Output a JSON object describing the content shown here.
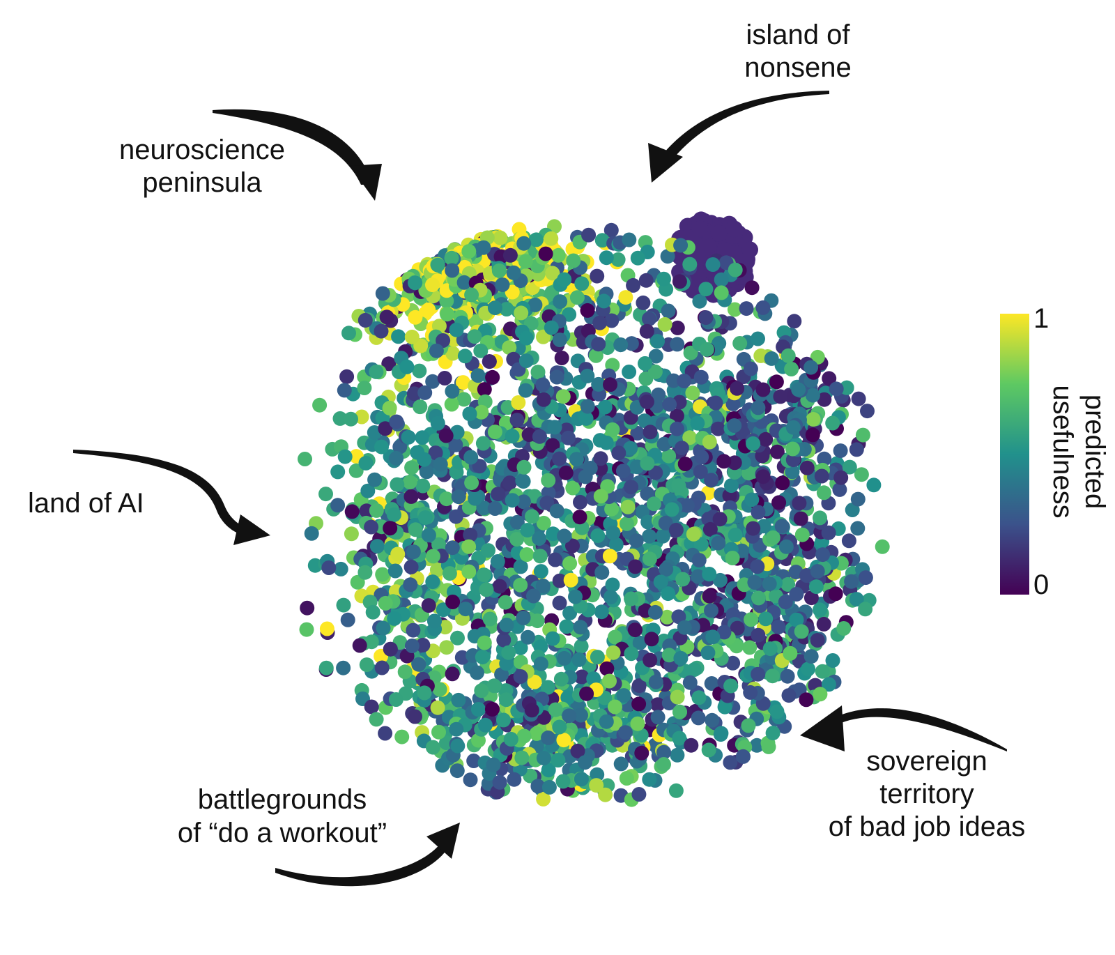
{
  "chart_data": {
    "type": "scatter",
    "title": "",
    "xlabel": "",
    "ylabel": "",
    "grid": false,
    "colormap": "viridis",
    "colorbar": {
      "label_lines": [
        "predicted",
        "usefulness"
      ],
      "min": 0,
      "max": 1,
      "tick_labels": [
        "1",
        "0"
      ],
      "colors": [
        "#440154",
        "#3b528b",
        "#21918c",
        "#5ec962",
        "#fde725"
      ]
    },
    "annotations": [
      {
        "id": "island",
        "lines": [
          "island of",
          "nonsene"
        ]
      },
      {
        "id": "neuro",
        "lines": [
          "neuroscience",
          "peninsula"
        ]
      },
      {
        "id": "ai",
        "lines": [
          "land of AI"
        ]
      },
      {
        "id": "workout",
        "lines": [
          "battlegrounds",
          "of “do a workout”"
        ]
      },
      {
        "id": "jobs",
        "lines": [
          "sovereign",
          "territory",
          "of bad job ideas"
        ]
      }
    ],
    "clusters": [
      {
        "name": "island of nonsene",
        "center": [
          0.43,
          0.76
        ],
        "spread": [
          0.06,
          0.06
        ],
        "usefulness": 0.0,
        "count": 180,
        "shape": "disk"
      },
      {
        "name": "neuroscience peninsula",
        "center": [
          -0.35,
          0.72
        ],
        "spread": [
          0.18,
          0.11
        ],
        "usefulness": 0.82,
        "count": 420
      },
      {
        "name": "land of AI",
        "center": [
          -0.52,
          -0.15
        ],
        "spread": [
          0.14,
          0.32
        ],
        "usefulness": 0.62,
        "count": 260
      },
      {
        "name": "battlegrounds of “do a workout”",
        "center": [
          -0.08,
          -0.72
        ],
        "spread": [
          0.22,
          0.12
        ],
        "usefulness": 0.5,
        "count": 320
      },
      {
        "name": "sovereign territory of bad job ideas",
        "center": [
          0.58,
          -0.32
        ],
        "spread": [
          0.17,
          0.28
        ],
        "usefulness": 0.4,
        "count": 340
      },
      {
        "name": "central mass",
        "center": [
          0.05,
          0.02
        ],
        "spread": [
          0.42,
          0.42
        ],
        "usefulness": 0.45,
        "count": 1500
      },
      {
        "name": "upper right scatter",
        "center": [
          0.62,
          0.25
        ],
        "spread": [
          0.12,
          0.1
        ],
        "usefulness": 0.35,
        "count": 120
      }
    ]
  }
}
